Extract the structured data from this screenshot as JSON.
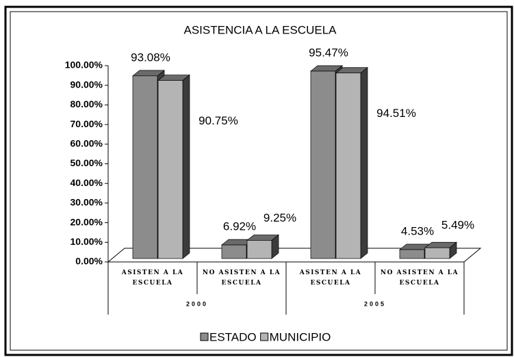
{
  "chart_data": {
    "type": "bar3d",
    "title": "ASISTENCIA A LA ESCUELA",
    "categories": [
      "ASISTEN A LA ESCUELA",
      "NO ASISTEN A LA ESCUELA",
      "ASISTEN A LA ESCUELA",
      "NO ASISTEN A LA ESCUELA"
    ],
    "groups": [
      "2000",
      "2005"
    ],
    "series": [
      {
        "name": "ESTADO",
        "color": "#8c8c8c",
        "values": [
          93.08,
          6.92,
          95.47,
          4.53
        ],
        "value_labels": [
          "93.08%",
          "6.92%",
          "95.47%",
          "4.53%"
        ]
      },
      {
        "name": "MUNICIPIO",
        "color": "#b4b4b4",
        "values": [
          90.75,
          9.25,
          94.51,
          5.49
        ],
        "value_labels": [
          "90.75%",
          "9.25%",
          "94.51%",
          "5.49%"
        ]
      }
    ],
    "ylim": [
      0,
      100
    ],
    "yticks": [
      {
        "value": 0,
        "label": "0.00%"
      },
      {
        "value": 10,
        "label": "10.00%"
      },
      {
        "value": 20,
        "label": "20.00%"
      },
      {
        "value": 30,
        "label": "30.00%"
      },
      {
        "value": 40,
        "label": "40.00%"
      },
      {
        "value": 50,
        "label": "50.00%"
      },
      {
        "value": 60,
        "label": "60.00%"
      },
      {
        "value": 70,
        "label": "70.00%"
      },
      {
        "value": 80,
        "label": "80.00%"
      },
      {
        "value": 90,
        "label": "90.00%"
      },
      {
        "value": 100,
        "label": "100.00%"
      }
    ],
    "legend": "bottom"
  }
}
